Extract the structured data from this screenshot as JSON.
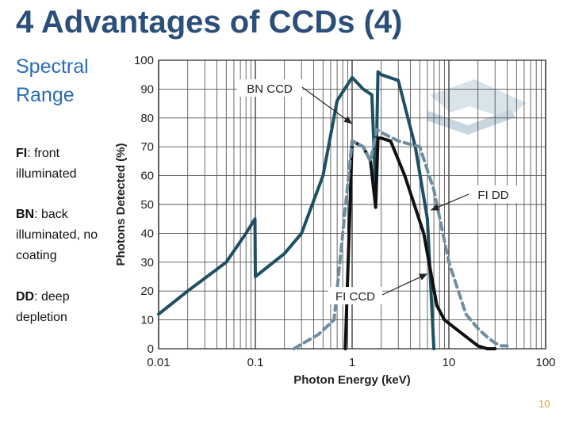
{
  "slide": {
    "title": "4 Advantages of CCDs (4)",
    "subtitle_line1": "Spectral",
    "subtitle_line2": "Range",
    "notes": [
      {
        "abbr": "FI",
        "rest": ": front",
        "line2": "illuminated",
        "line3": ""
      },
      {
        "abbr": "BN",
        "rest": ": back",
        "line2": "illuminated, no",
        "line3": "coating"
      },
      {
        "abbr": "DD",
        "rest": ": deep",
        "line2": "depletion",
        "line3": ""
      }
    ],
    "page_number": "10"
  },
  "chart_data": {
    "type": "line",
    "xscale": "log",
    "xlim": [
      0.01,
      100
    ],
    "ylim": [
      0,
      100
    ],
    "xlabel": "Photon Energy (keV)",
    "ylabel": "Photons Detected (%)",
    "xticks": [
      "0.01",
      "0.1",
      "1",
      "10",
      "100"
    ],
    "xtick_values": [
      0.01,
      0.1,
      1,
      10,
      100
    ],
    "yticks": [
      0,
      10,
      20,
      30,
      40,
      50,
      60,
      70,
      80,
      90,
      100
    ],
    "grid": true,
    "series": [
      {
        "name": "BN CCD",
        "color": "#1e4f63",
        "style": "solid",
        "x": [
          0.01,
          0.02,
          0.05,
          0.08,
          0.099,
          0.1,
          0.2,
          0.3,
          0.5,
          0.7,
          1.0,
          1.3,
          1.6,
          1.75,
          1.85,
          2.0,
          3.0,
          4.5,
          6.0,
          7.0
        ],
        "y": [
          12,
          20,
          30,
          40,
          45,
          25,
          33,
          40,
          60,
          86,
          94,
          90,
          88,
          55,
          96,
          95,
          93,
          70,
          45,
          0
        ]
      },
      {
        "name": "FI CCD",
        "color": "#111111",
        "style": "solid",
        "x": [
          0.85,
          1.0,
          1.3,
          1.55,
          1.75,
          1.85,
          2.0,
          2.5,
          3.5,
          5.5,
          7.5,
          9.0,
          14,
          20,
          25,
          30
        ],
        "y": [
          0,
          72,
          70,
          65,
          49,
          73,
          73,
          72,
          60,
          40,
          15,
          10,
          5,
          1,
          0,
          0
        ]
      },
      {
        "name": "FI DD",
        "color": "#6f8ea0",
        "style": "dashed",
        "x": [
          0.25,
          0.45,
          0.65,
          0.8,
          1.0,
          1.3,
          1.55,
          1.8,
          2.0,
          3.0,
          5.0,
          7.0,
          10,
          15,
          20,
          25,
          30,
          35,
          40
        ],
        "y": [
          0,
          5,
          10,
          40,
          72,
          70,
          65,
          76,
          75,
          72,
          70,
          55,
          30,
          12,
          7,
          4,
          2,
          1,
          1
        ]
      }
    ],
    "annotations": [
      {
        "text": "BN CCD",
        "points_to_x": 1.0,
        "points_to_y": 78
      },
      {
        "text": "FI DD",
        "points_to_x": 6.5,
        "points_to_y": 48
      },
      {
        "text": "FI CCD",
        "points_to_x": 6.0,
        "points_to_y": 26
      }
    ]
  }
}
